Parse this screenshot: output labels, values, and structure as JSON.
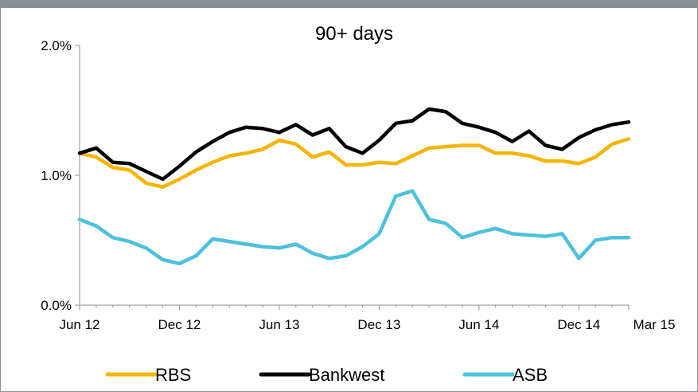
{
  "chart_data": {
    "type": "line",
    "title": "90+ days",
    "xlabel": "",
    "ylabel": "",
    "ylim": [
      0,
      2.0
    ],
    "y_ticks": [
      {
        "value": 0.0,
        "label": "0.0%"
      },
      {
        "value": 1.0,
        "label": "1.0%"
      },
      {
        "value": 2.0,
        "label": "2.0%"
      }
    ],
    "x_ticks": [
      {
        "index": 0,
        "label": "Jun 12"
      },
      {
        "index": 6,
        "label": "Dec 12"
      },
      {
        "index": 12,
        "label": "Jun 13"
      },
      {
        "index": 18,
        "label": "Dec 13"
      },
      {
        "index": 24,
        "label": "Jun 14"
      },
      {
        "index": 30,
        "label": "Dec 14"
      },
      {
        "index": 33,
        "label": "Mar 15"
      }
    ],
    "x": [
      "Jun 12",
      "Jul 12",
      "Aug 12",
      "Sep 12",
      "Oct 12",
      "Nov 12",
      "Dec 12",
      "Jan 13",
      "Feb 13",
      "Mar 13",
      "Apr 13",
      "May 13",
      "Jun 13",
      "Jul 13",
      "Aug 13",
      "Sep 13",
      "Oct 13",
      "Nov 13",
      "Dec 13",
      "Jan 14",
      "Feb 14",
      "Mar 14",
      "Apr 14",
      "May 14",
      "Jun 14",
      "Jul 14",
      "Aug 14",
      "Sep 14",
      "Oct 14",
      "Nov 14",
      "Dec 14",
      "Jan 15",
      "Feb 15",
      "Mar 15"
    ],
    "series": [
      {
        "name": "RBS",
        "color": "#f5b400",
        "values": [
          1.17,
          1.14,
          1.06,
          1.04,
          0.94,
          0.91,
          0.97,
          1.04,
          1.1,
          1.15,
          1.17,
          1.2,
          1.27,
          1.24,
          1.14,
          1.18,
          1.08,
          1.08,
          1.1,
          1.09,
          1.15,
          1.21,
          1.22,
          1.23,
          1.23,
          1.17,
          1.17,
          1.15,
          1.11,
          1.11,
          1.09,
          1.14,
          1.24,
          1.28
        ]
      },
      {
        "name": "Bankwest",
        "color": "#000000",
        "values": [
          1.17,
          1.21,
          1.1,
          1.09,
          1.03,
          0.97,
          1.07,
          1.18,
          1.26,
          1.33,
          1.37,
          1.36,
          1.33,
          1.39,
          1.31,
          1.36,
          1.22,
          1.17,
          1.27,
          1.4,
          1.42,
          1.51,
          1.49,
          1.4,
          1.37,
          1.33,
          1.26,
          1.34,
          1.23,
          1.2,
          1.29,
          1.35,
          1.39,
          1.41
        ]
      },
      {
        "name": "ASB",
        "color": "#4bc1dc",
        "values": [
          0.66,
          0.61,
          0.52,
          0.49,
          0.44,
          0.35,
          0.32,
          0.38,
          0.51,
          0.49,
          0.47,
          0.45,
          0.44,
          0.47,
          0.4,
          0.36,
          0.38,
          0.45,
          0.55,
          0.84,
          0.88,
          0.66,
          0.63,
          0.52,
          0.56,
          0.59,
          0.55,
          0.54,
          0.53,
          0.55,
          0.36,
          0.5,
          0.52,
          0.52
        ]
      }
    ],
    "grid": false,
    "legend_position": "bottom"
  }
}
